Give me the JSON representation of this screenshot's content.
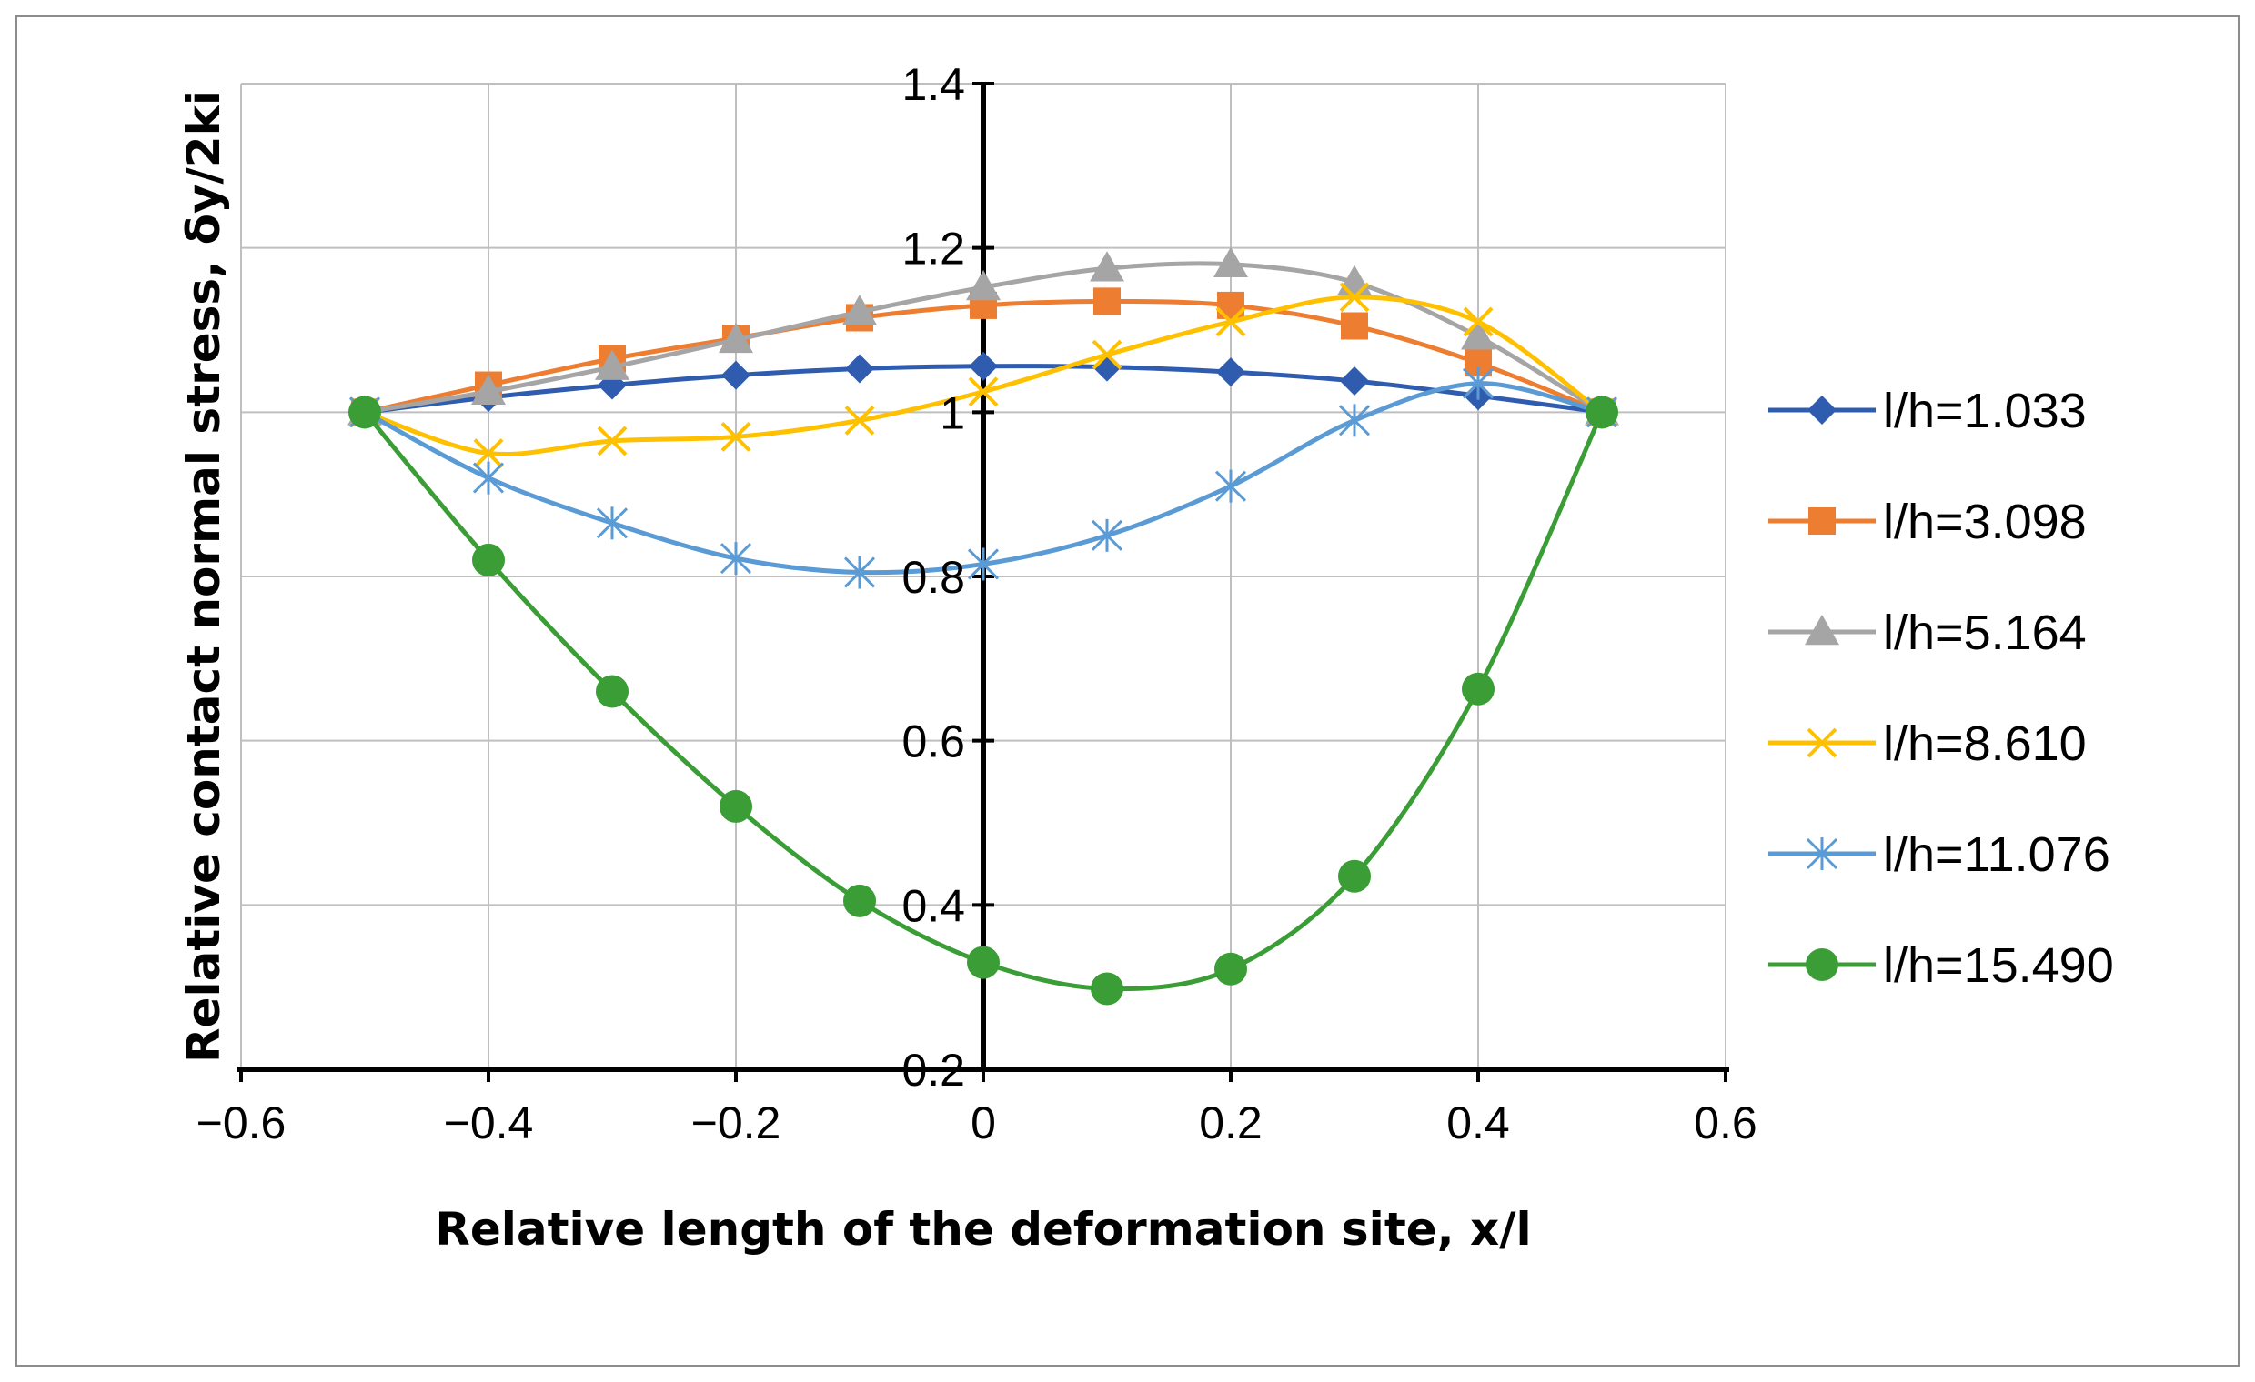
{
  "chart_data": {
    "type": "line",
    "title": "",
    "xlabel": "Relative length of the deformation site, x/l",
    "ylabel": "Relative contact normal stress, δy/2ki",
    "xlim": [
      -0.6,
      0.6
    ],
    "ylim": [
      0.2,
      1.4
    ],
    "xticks": [
      -0.6,
      -0.4,
      -0.2,
      0,
      0.2,
      0.4,
      0.6
    ],
    "yticks": [
      0.2,
      0.4,
      0.6,
      0.8,
      1,
      1.2,
      1.4
    ],
    "xtick_labels": [
      "−0.6",
      "−0.4",
      "−0.2",
      "0",
      "0.2",
      "0.4",
      "0.6"
    ],
    "ytick_labels": [
      "0.2",
      "0.4",
      "0.6",
      "0.8",
      "1",
      "1.2",
      "1.4"
    ],
    "grid": true,
    "legend_position": "right",
    "x": [
      -0.5,
      -0.4,
      -0.3,
      -0.2,
      -0.1,
      0,
      0.1,
      0.2,
      0.3,
      0.4,
      0.5
    ],
    "series": [
      {
        "name": "l/h=1.033",
        "color": "#2F5CAE",
        "marker": "diamond",
        "values": [
          1.0,
          1.018,
          1.033,
          1.045,
          1.053,
          1.056,
          1.055,
          1.049,
          1.038,
          1.02,
          1.0
        ]
      },
      {
        "name": "l/h=3.098",
        "color": "#ED7D31",
        "marker": "square",
        "values": [
          1.0,
          1.033,
          1.065,
          1.09,
          1.115,
          1.13,
          1.135,
          1.13,
          1.105,
          1.06,
          1.0
        ]
      },
      {
        "name": "l/h=5.164",
        "color": "#A5A5A5",
        "marker": "triangle",
        "values": [
          1.0,
          1.025,
          1.055,
          1.088,
          1.122,
          1.152,
          1.175,
          1.18,
          1.158,
          1.092,
          1.0
        ]
      },
      {
        "name": "l/h=8.610",
        "color": "#FFC000",
        "marker": "x",
        "values": [
          1.0,
          0.95,
          0.965,
          0.97,
          0.99,
          1.025,
          1.07,
          1.11,
          1.14,
          1.11,
          1.0
        ]
      },
      {
        "name": "l/h=11.076",
        "color": "#5B9BD5",
        "marker": "star",
        "values": [
          1.0,
          0.92,
          0.865,
          0.822,
          0.805,
          0.815,
          0.85,
          0.91,
          0.99,
          1.035,
          1.0
        ]
      },
      {
        "name": "l/h=15.490",
        "color": "#3A9D35",
        "marker": "circle",
        "values": [
          1.0,
          0.82,
          0.66,
          0.52,
          0.405,
          0.33,
          0.298,
          0.322,
          0.435,
          0.663,
          1.0
        ]
      }
    ]
  }
}
